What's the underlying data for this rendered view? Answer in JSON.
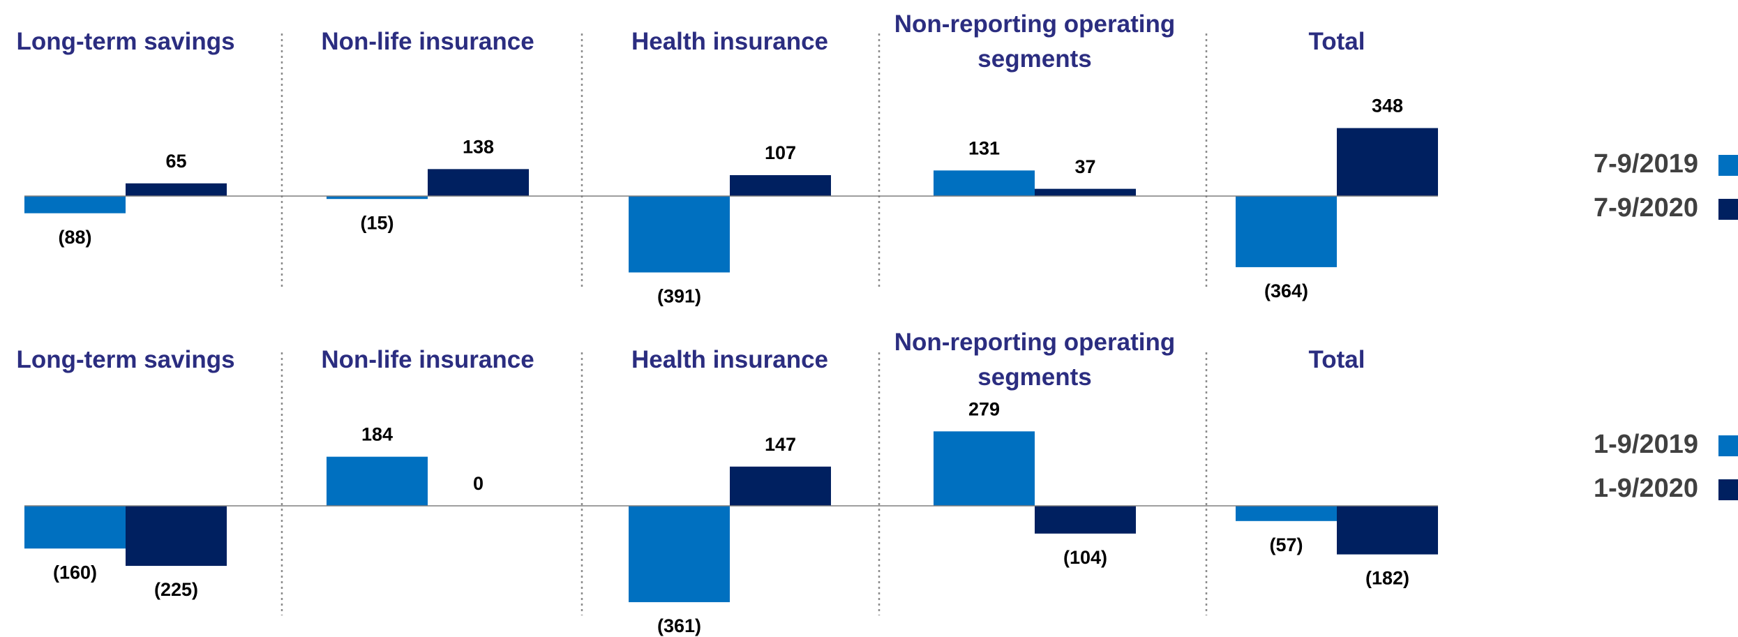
{
  "chart_data": [
    {
      "type": "bar",
      "categories": [
        "Long-term savings",
        "Non-life insurance",
        "Health insurance",
        "Non-reporting operating segments",
        "Total"
      ],
      "series": [
        {
          "name": "7-9/2019",
          "color": "#0070c0",
          "values": [
            -88,
            -15,
            -391,
            131,
            -364
          ],
          "value_labels": [
            "(88)",
            "(15)",
            "(391)",
            "131",
            "(364)"
          ]
        },
        {
          "name": "7-9/2020",
          "color": "#002060",
          "values": [
            65,
            138,
            107,
            37,
            348
          ],
          "value_labels": [
            "65",
            "138",
            "107",
            "37",
            "348"
          ]
        }
      ],
      "ylim": [
        -500,
        500
      ]
    },
    {
      "type": "bar",
      "categories": [
        "Long-term savings",
        "Non-life insurance",
        "Health insurance",
        "Non-reporting operating segments",
        "Total"
      ],
      "series": [
        {
          "name": "1-9/2019",
          "color": "#0070c0",
          "values": [
            -160,
            184,
            -361,
            279,
            -57
          ],
          "value_labels": [
            "(160)",
            "184",
            "(361)",
            "279",
            "(57)"
          ]
        },
        {
          "name": "1-9/2020",
          "color": "#002060",
          "values": [
            -225,
            0,
            147,
            -104,
            -182
          ],
          "value_labels": [
            "(225)",
            "0",
            "147",
            "(104)",
            "(182)"
          ]
        }
      ],
      "ylim": [
        -400,
        400
      ]
    }
  ]
}
